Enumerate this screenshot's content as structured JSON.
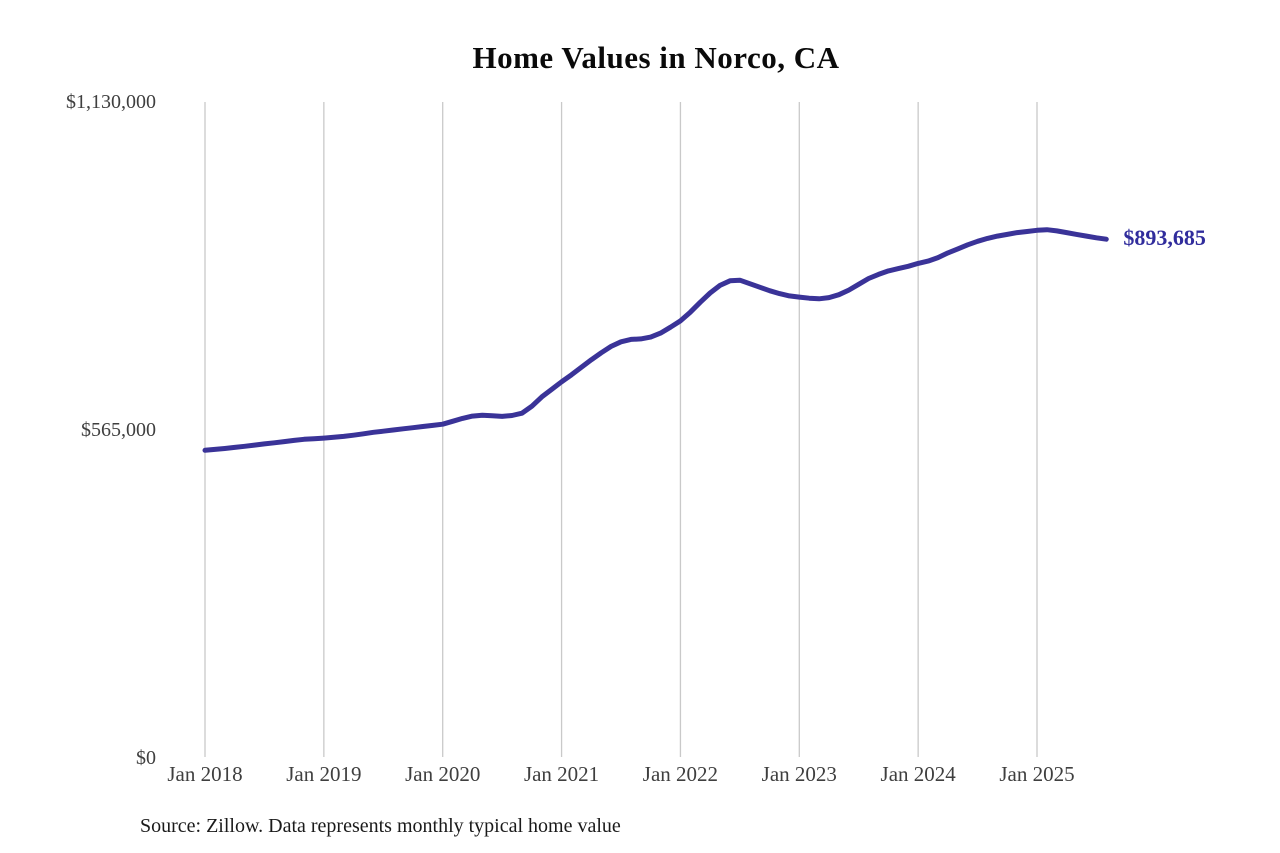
{
  "title": "Home Values in Norco, CA",
  "source_note": "Source: Zillow. Data represents monthly typical home value",
  "colors": {
    "background": "#ffffff",
    "line": "#3a3398",
    "end_label": "#302c9c",
    "gridline": "#c9c9c9",
    "tick_text": "#3f3f3f",
    "title_text": "#0a0a0a",
    "source_text": "#1a1a1a"
  },
  "chart_data": {
    "type": "line",
    "title": "Home Values in Norco, CA",
    "xlabel": "",
    "ylabel": "",
    "ylim": [
      0,
      1130000
    ],
    "grid": "vertical-only",
    "legend": "none",
    "x_tick_labels": [
      "Jan 2018",
      "Jan 2019",
      "Jan 2020",
      "Jan 2021",
      "Jan 2022",
      "Jan 2023",
      "Jan 2024",
      "Jan 2025"
    ],
    "y_ticks": [
      {
        "label": "$1,130,000",
        "value": 1130000
      },
      {
        "label": "$565,000",
        "value": 565000
      },
      {
        "label": "$0",
        "value": 0
      }
    ],
    "end_label": "$893,685",
    "end_value": 893685,
    "series": [
      {
        "name": "Typical home value (USD)",
        "frequency": "monthly",
        "start": "2018-01",
        "end": "2025-08",
        "values": [
          530000,
          531500,
          533200,
          535000,
          537000,
          539000,
          541000,
          543000,
          545000,
          547000,
          549000,
          550000,
          551000,
          552500,
          554000,
          556000,
          558500,
          561000,
          563000,
          565000,
          567000,
          569000,
          571000,
          573000,
          575000,
          580000,
          585000,
          589000,
          590500,
          589500,
          588500,
          590000,
          594000,
          606000,
          622000,
          635000,
          648000,
          660000,
          673000,
          686000,
          698000,
          709000,
          717000,
          721000,
          722000,
          725000,
          732000,
          742000,
          753000,
          768000,
          785000,
          801000,
          814000,
          822000,
          823000,
          817000,
          811000,
          805000,
          800000,
          796000,
          794000,
          792000,
          791000,
          793000,
          798000,
          806000,
          816000,
          826000,
          833000,
          839000,
          843000,
          847000,
          852000,
          856000,
          862000,
          870000,
          877000,
          884000,
          890000,
          895000,
          899000,
          902000,
          905000,
          907000,
          909000,
          910000,
          908000,
          905000,
          902000,
          899000,
          896000,
          893685
        ]
      }
    ]
  }
}
